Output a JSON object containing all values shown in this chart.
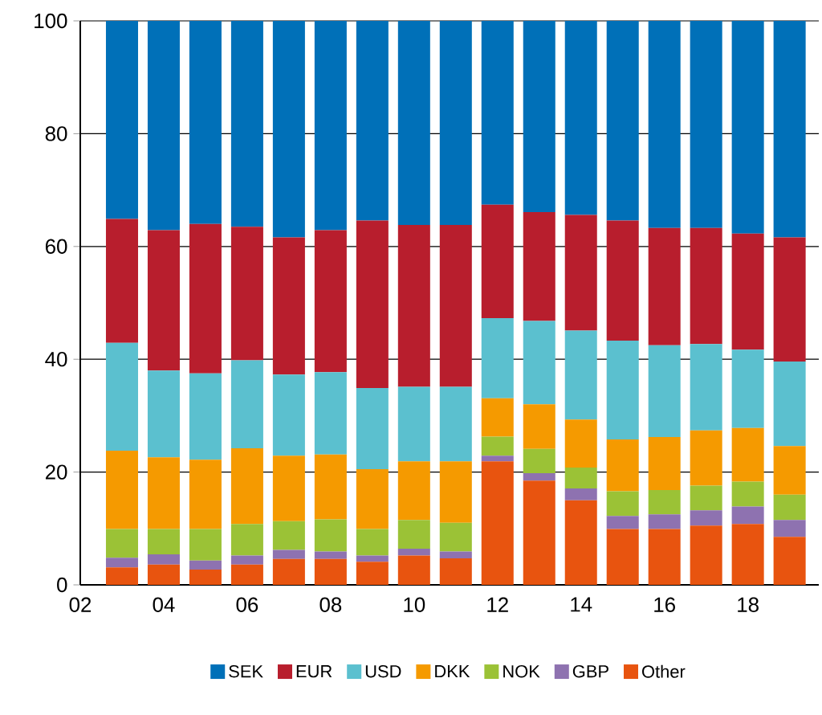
{
  "chart_data": {
    "type": "bar",
    "stacked": true,
    "x": [
      2003,
      2004,
      2005,
      2006,
      2007,
      2008,
      2009,
      2010,
      2011,
      2012,
      2013,
      2014,
      2015,
      2016,
      2017,
      2018,
      2019
    ],
    "series": [
      {
        "name": "Other",
        "color": "#e8540f",
        "values": [
          3.1,
          3.6,
          2.7,
          3.6,
          4.6,
          4.6,
          4.1,
          5.2,
          4.7,
          21.9,
          18.5,
          15.0,
          9.9,
          9.9,
          10.5,
          10.8,
          8.5
        ]
      },
      {
        "name": "GBP",
        "color": "#8e72b0",
        "values": [
          1.7,
          1.8,
          1.6,
          1.6,
          1.6,
          1.3,
          1.1,
          1.2,
          1.2,
          1.0,
          1.3,
          2.1,
          2.3,
          2.6,
          2.7,
          3.1,
          3.0
        ]
      },
      {
        "name": "NOK",
        "color": "#9bc236",
        "values": [
          5.1,
          4.5,
          5.6,
          5.6,
          5.1,
          5.7,
          4.7,
          5.1,
          5.1,
          3.4,
          4.3,
          3.7,
          4.4,
          4.3,
          4.4,
          4.4,
          4.5
        ]
      },
      {
        "name": "DKK",
        "color": "#f59a00",
        "values": [
          13.9,
          12.7,
          12.3,
          13.4,
          11.6,
          11.5,
          10.6,
          10.4,
          10.9,
          6.8,
          7.9,
          8.5,
          9.2,
          9.4,
          9.8,
          9.5,
          8.6
        ]
      },
      {
        "name": "USD",
        "color": "#5bc0cf",
        "values": [
          19.1,
          15.4,
          15.3,
          15.6,
          14.4,
          14.6,
          14.4,
          13.2,
          13.2,
          14.2,
          14.8,
          15.8,
          17.5,
          16.3,
          15.3,
          13.9,
          15.0
        ]
      },
      {
        "name": "EUR",
        "color": "#b81e2d",
        "values": [
          22.0,
          24.9,
          26.5,
          23.7,
          24.3,
          25.2,
          29.7,
          28.7,
          28.7,
          20.1,
          19.3,
          20.5,
          21.3,
          20.8,
          20.6,
          20.6,
          22.0
        ]
      },
      {
        "name": "SEK",
        "color": "#0070b8",
        "values": [
          35.1,
          37.1,
          36.0,
          36.5,
          38.4,
          37.1,
          35.4,
          36.2,
          36.2,
          32.6,
          33.9,
          34.4,
          35.4,
          36.7,
          36.7,
          37.7,
          38.4
        ]
      }
    ],
    "xlim": [
      2002,
      2019.7
    ],
    "xticks": [
      {
        "value": 2002,
        "label": "02"
      },
      {
        "value": 2004,
        "label": "04"
      },
      {
        "value": 2006,
        "label": "06"
      },
      {
        "value": 2008,
        "label": "08"
      },
      {
        "value": 2010,
        "label": "10"
      },
      {
        "value": 2012,
        "label": "12"
      },
      {
        "value": 2014,
        "label": "14"
      },
      {
        "value": 2016,
        "label": "16"
      },
      {
        "value": 2018,
        "label": "18"
      }
    ],
    "ylim": [
      0,
      100
    ],
    "yticks": [
      0,
      20,
      40,
      60,
      80,
      100
    ],
    "grid": "y",
    "legend": "bottom"
  }
}
